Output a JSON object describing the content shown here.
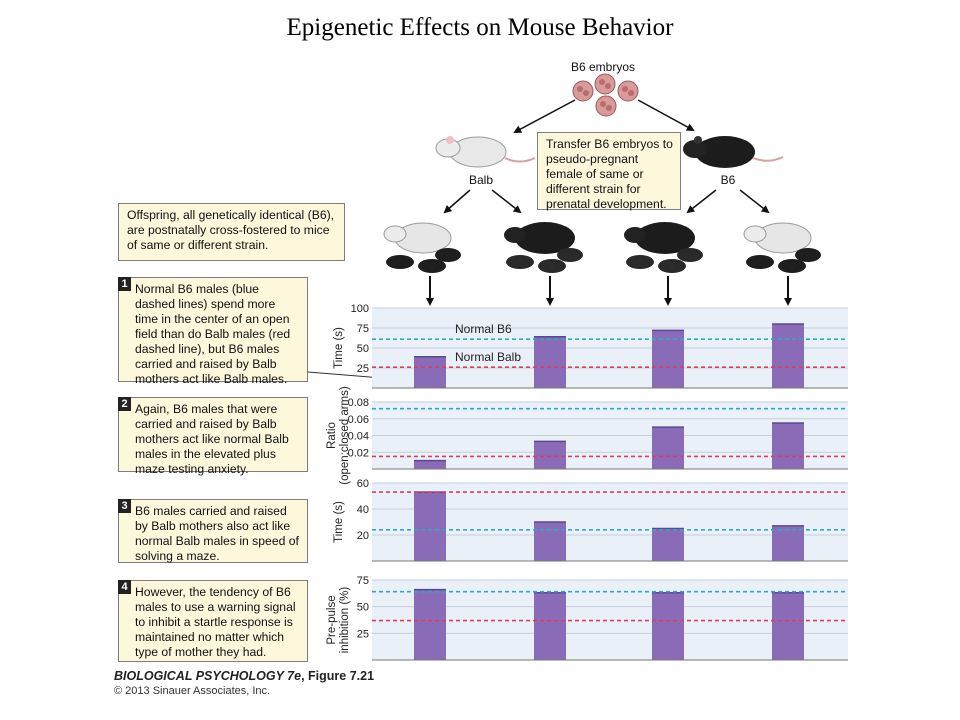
{
  "title": "Epigenetic Effects on Mouse Behavior",
  "diagram": {
    "embryos_label": "B6 embryos",
    "balb_label": "Balb",
    "b6_label": "B6",
    "transfer_text": "Transfer B6 embryos to pseudo-pregnant female of same or different strain for prenatal development.",
    "offspring_text": "Offspring, all genetically identical (B6), are postnatally cross-fostered to mice of same or different strain."
  },
  "notes": [
    {
      "num": "1",
      "text": "Normal B6 males (blue dashed lines) spend more time in the center of an open field than do Balb males (red dashed line), but B6 males carried and raised by Balb mothers act like Balb males."
    },
    {
      "num": "2",
      "text": "Again, B6 males that were carried and raised by Balb mothers act like normal Balb males in the elevated plus maze testing anxiety."
    },
    {
      "num": "3",
      "text": "B6 males carried and raised by Balb mothers also act like normal Balb males in speed of solving a maze."
    },
    {
      "num": "4",
      "text": "However, the tendency of B6 males to use a warning signal to inhibit a startle response is maintained no matter which type of mother they had."
    }
  ],
  "credit": {
    "book": "BIOLOGICAL PSYCHOLOGY 7e",
    "figure": ", Figure 7.21",
    "copyright": "© 2013 Sinauer Associates, Inc."
  },
  "colors": {
    "bar": "#8a6bb8",
    "panel": "#eaf0f7",
    "normal_b6_line": "#2aa8cc",
    "normal_balb_line": "#d8405a",
    "box": "#fdf7dc"
  },
  "chart_data": [
    {
      "type": "bar",
      "ylabel": "Time (s)",
      "ylim": [
        0,
        100
      ],
      "yticks": [
        25,
        50,
        75,
        100
      ],
      "values": [
        39,
        64,
        72,
        80
      ],
      "reference_lines": [
        {
          "name": "Normal B6",
          "value": 61
        },
        {
          "name": "Normal Balb",
          "value": 26
        }
      ]
    },
    {
      "type": "bar",
      "ylabel": "Ratio (open:closed arms)",
      "ylim": [
        0,
        0.08
      ],
      "yticks": [
        0.02,
        0.04,
        0.06,
        0.08
      ],
      "tick_labels": [
        "0.02",
        "0.04",
        "0.06",
        "0.08"
      ],
      "values": [
        0.01,
        0.033,
        0.05,
        0.055
      ],
      "reference_lines": [
        {
          "name": "Normal B6",
          "value": 0.072
        },
        {
          "name": "Normal Balb",
          "value": 0.015
        }
      ]
    },
    {
      "type": "bar",
      "ylabel": "Time (s)",
      "ylim": [
        0,
        60
      ],
      "yticks": [
        20,
        40,
        60
      ],
      "values": [
        53,
        30,
        25,
        27
      ],
      "reference_lines": [
        {
          "name": "Normal B6",
          "value": 24
        },
        {
          "name": "Normal Balb",
          "value": 53
        }
      ]
    },
    {
      "type": "bar",
      "ylabel": "Pre-pulse inhibition (%)",
      "ylim": [
        0,
        75
      ],
      "yticks": [
        25,
        50,
        75
      ],
      "values": [
        66,
        63,
        63,
        63
      ],
      "reference_lines": [
        {
          "name": "Normal B6",
          "value": 64
        },
        {
          "name": "Normal Balb",
          "value": 37
        }
      ]
    }
  ]
}
